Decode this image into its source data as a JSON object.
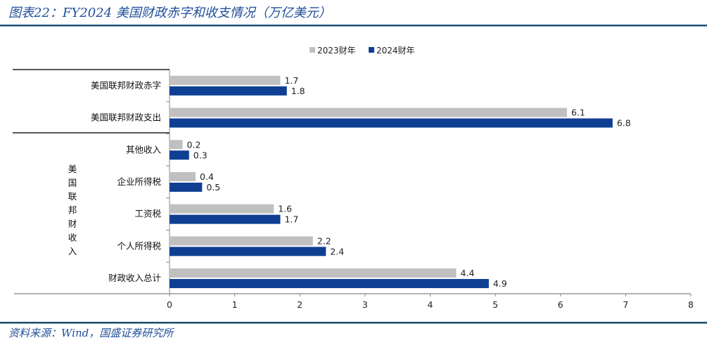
{
  "title": "图表22：FY2024 美国财政赤字和收支情况（万亿美元）",
  "source": "资料来源：Wind，国盛证券研究所",
  "chart_data": {
    "type": "bar",
    "orientation": "horizontal",
    "title": "",
    "categories": [
      "美国联邦财政赤字",
      "美国联邦财政支出",
      "其他收入",
      "企业所得税",
      "工资税",
      "个人所得税",
      "财政收入总计"
    ],
    "group_label": "美国联邦财收入",
    "series": [
      {
        "name": "2023财年",
        "color": "#c0c0c0",
        "values": [
          1.7,
          6.1,
          0.2,
          0.4,
          1.6,
          2.2,
          4.4
        ]
      },
      {
        "name": "2024财年",
        "color": "#0f3f93",
        "values": [
          1.8,
          6.8,
          0.3,
          0.5,
          1.7,
          2.4,
          4.9
        ]
      }
    ],
    "xlim": [
      0,
      8
    ],
    "xticks": [
      "0",
      "1",
      "2",
      "3",
      "4",
      "5",
      "6",
      "7",
      "8"
    ],
    "xlabel": "",
    "ylabel": "",
    "legend": "top",
    "grid": false
  }
}
